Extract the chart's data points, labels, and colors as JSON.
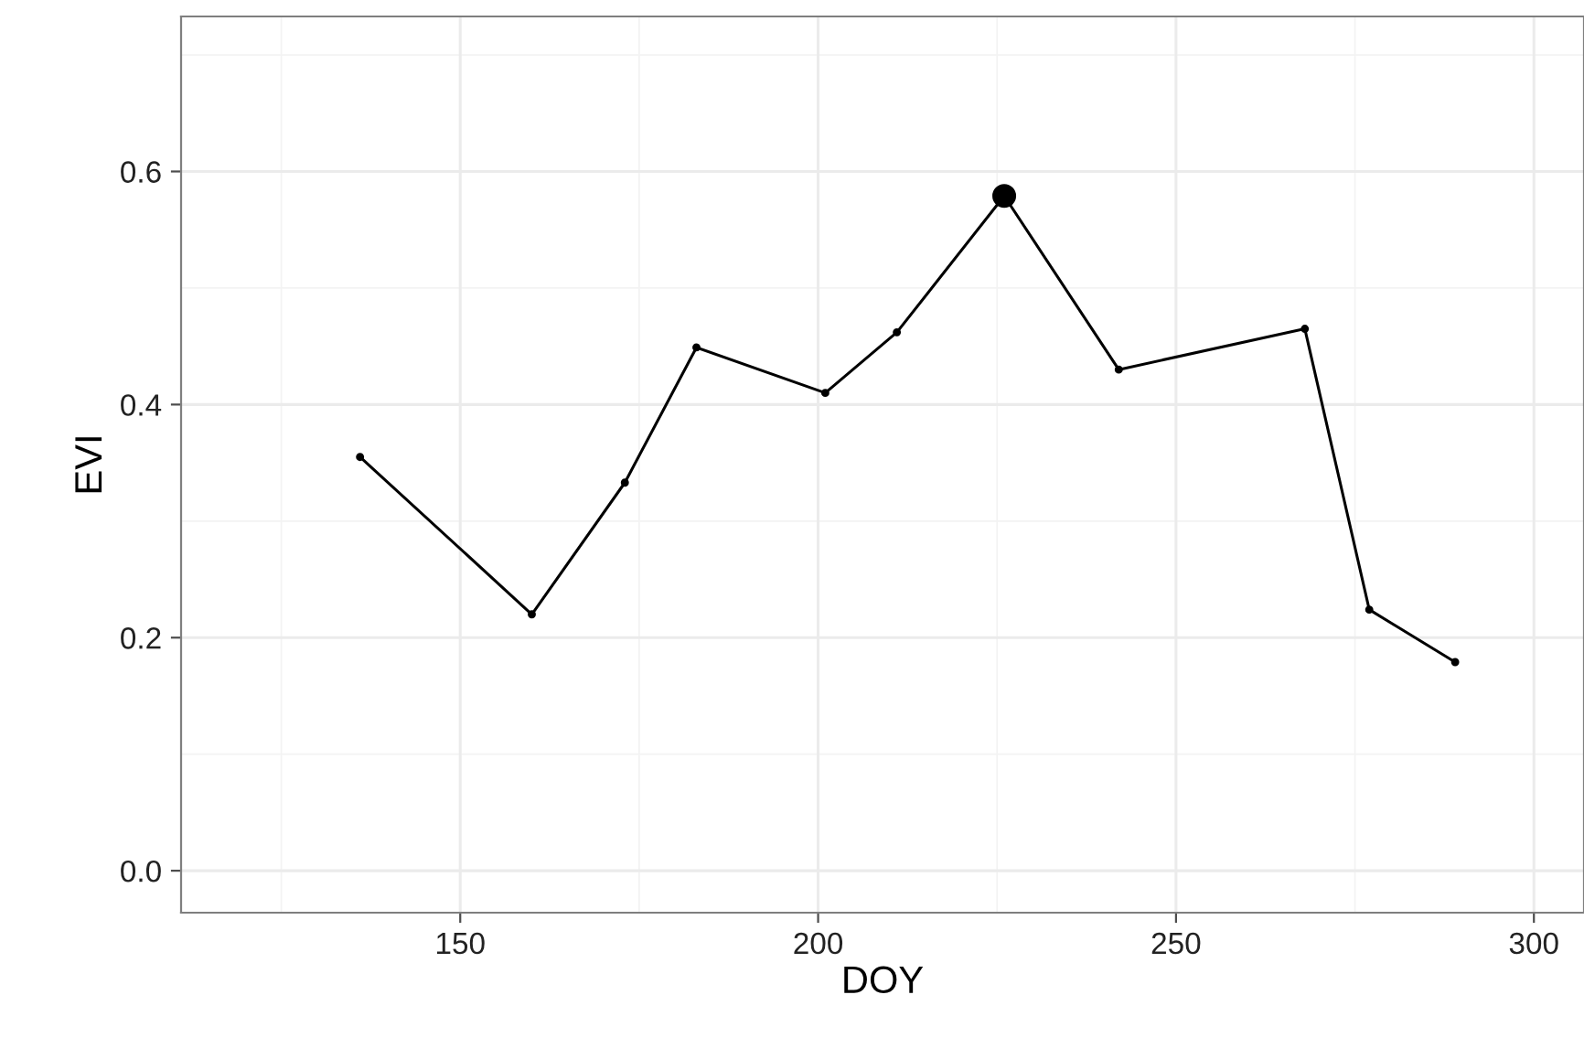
{
  "chart_data": {
    "type": "line",
    "xlabel": "DOY",
    "ylabel": "EVI",
    "xlim": [
      111,
      307
    ],
    "ylim": [
      -0.036,
      0.733
    ],
    "xticks": [
      150,
      200,
      250,
      300
    ],
    "yticks": [
      {
        "value": 0,
        "label": "0.0"
      },
      {
        "value": 0.2,
        "label": "0.2"
      },
      {
        "value": 0.4,
        "label": "0.4"
      },
      {
        "value": 0.6,
        "label": "0.6"
      }
    ],
    "grid": true,
    "marker": "circle",
    "series": [
      {
        "color": "#000000",
        "x": [
          136,
          160,
          173,
          183,
          201,
          211,
          226,
          242,
          268,
          277,
          289
        ],
        "values": [
          0.355,
          0.22,
          0.333,
          0.449,
          0.41,
          0.462,
          0.579,
          0.43,
          0.465,
          0.224,
          0.179
        ]
      },
      {
        "type": "scatter",
        "color": "#000000",
        "x": [
          226
        ],
        "values": [
          0.579
        ]
      }
    ]
  }
}
